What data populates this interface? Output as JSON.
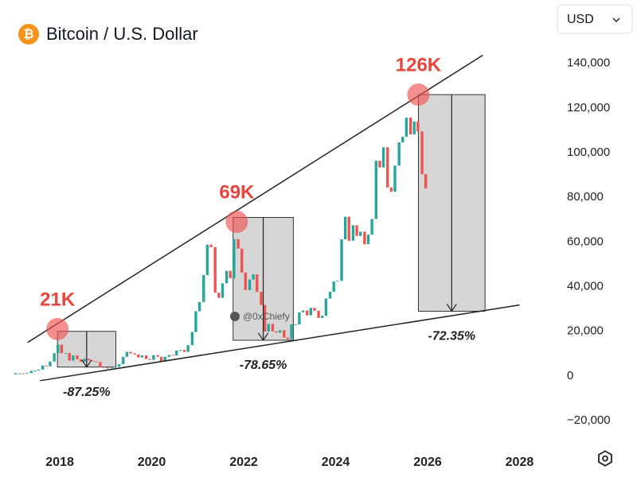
{
  "chart_data": {
    "type": "candlestick",
    "title": "Bitcoin / U.S. Dollar",
    "currency": "USD",
    "watermark": "@0xChiefy",
    "up_color": "#26a69a",
    "down_color": "#ef5350",
    "xlim": [
      2016.7,
      2028.65
    ],
    "ylim": [
      -31000,
      147000
    ],
    "xticks": [
      2018,
      2020,
      2022,
      2024,
      2026,
      2028
    ],
    "yticks": [
      {
        "value": -20000,
        "label": "−20,000"
      },
      0,
      {
        "value": 20000,
        "label": "20,000"
      },
      {
        "value": 40000,
        "label": "40,000"
      },
      {
        "value": 60000,
        "label": "60,000"
      },
      {
        "value": 80000,
        "label": "80,000"
      },
      {
        "value": 100000,
        "label": "100,000"
      },
      {
        "value": 120000,
        "label": "120,000"
      },
      {
        "value": 140000,
        "label": "140,000"
      }
    ],
    "x": [
      2017.04,
      2017.13,
      2017.21,
      2017.29,
      2017.38,
      2017.46,
      2017.54,
      2017.63,
      2017.71,
      2017.79,
      2017.88,
      2017.96,
      2018.04,
      2018.13,
      2018.21,
      2018.29,
      2018.38,
      2018.46,
      2018.54,
      2018.63,
      2018.71,
      2018.79,
      2018.88,
      2018.96,
      2019.04,
      2019.13,
      2019.21,
      2019.29,
      2019.38,
      2019.46,
      2019.54,
      2019.63,
      2019.71,
      2019.79,
      2019.88,
      2019.96,
      2020.04,
      2020.13,
      2020.21,
      2020.29,
      2020.38,
      2020.46,
      2020.54,
      2020.63,
      2020.71,
      2020.79,
      2020.88,
      2020.96,
      2021.04,
      2021.13,
      2021.21,
      2021.29,
      2021.38,
      2021.46,
      2021.54,
      2021.63,
      2021.71,
      2021.79,
      2021.88,
      2021.96,
      2022.04,
      2022.13,
      2022.21,
      2022.29,
      2022.38,
      2022.46,
      2022.54,
      2022.63,
      2022.71,
      2022.79,
      2022.88,
      2022.96,
      2023.04,
      2023.13,
      2023.21,
      2023.29,
      2023.38,
      2023.46,
      2023.54,
      2023.63,
      2023.71,
      2023.79,
      2023.88,
      2023.96,
      2024.04,
      2024.13,
      2024.21,
      2024.29,
      2024.38,
      2024.46,
      2024.54,
      2024.63,
      2024.71,
      2024.79,
      2024.88,
      2024.96,
      2025.04,
      2025.13,
      2025.21,
      2025.29,
      2025.38,
      2025.46,
      2025.54,
      2025.63,
      2025.71,
      2025.79,
      2025.88,
      2025.96
    ],
    "close": [
      970,
      1190,
      1080,
      1350,
      2300,
      2480,
      2870,
      4700,
      4340,
      6470,
      10200,
      14000,
      10200,
      10300,
      6900,
      9200,
      7500,
      6400,
      7700,
      7000,
      6600,
      6300,
      4000,
      3700,
      3450,
      3800,
      4100,
      5300,
      8600,
      10800,
      10100,
      9600,
      8300,
      9200,
      7600,
      7200,
      9350,
      8600,
      6400,
      8600,
      9450,
      9140,
      11350,
      11650,
      10780,
      13800,
      19700,
      29000,
      33100,
      45200,
      58800,
      57700,
      37300,
      35000,
      41500,
      47100,
      43800,
      61300,
      57000,
      46300,
      38500,
      43200,
      45500,
      37700,
      31800,
      19900,
      23300,
      20000,
      19400,
      20500,
      17200,
      16500,
      23100,
      23100,
      28500,
      29300,
      27200,
      30500,
      29200,
      26000,
      27000,
      34700,
      37700,
      42300,
      42600,
      61200,
      71300,
      60600,
      67500,
      62700,
      64600,
      59000,
      63300,
      70300,
      96400,
      93400,
      102400,
      84400,
      82500,
      94200,
      104600,
      107100,
      115700,
      108200,
      114000,
      109500,
      90400,
      84000
    ],
    "trendlines": [
      {
        "x": [
          2017.3,
          2027.2
        ],
        "y": [
          15000,
          143600
        ]
      },
      {
        "x": [
          2017.57,
          2028.0
        ],
        "y": [
          -2100,
          31800
        ]
      }
    ],
    "peaks": [
      {
        "label": "21K",
        "x": 2017.95,
        "y": 21000
      },
      {
        "label": "69K",
        "x": 2021.85,
        "y": 69000
      },
      {
        "label": "126K",
        "x": 2025.8,
        "y": 126000
      }
    ],
    "drawdowns": [
      {
        "label": "-87.25%",
        "x": [
          2017.95,
          2019.22
        ],
        "y": [
          20000,
          4000
        ]
      },
      {
        "label": "-78.65%",
        "x": [
          2021.77,
          2023.08
        ],
        "y": [
          71000,
          16000
        ]
      },
      {
        "label": "-72.35%",
        "x": [
          2025.8,
          2027.25
        ],
        "y": [
          126000,
          29000
        ]
      }
    ]
  }
}
